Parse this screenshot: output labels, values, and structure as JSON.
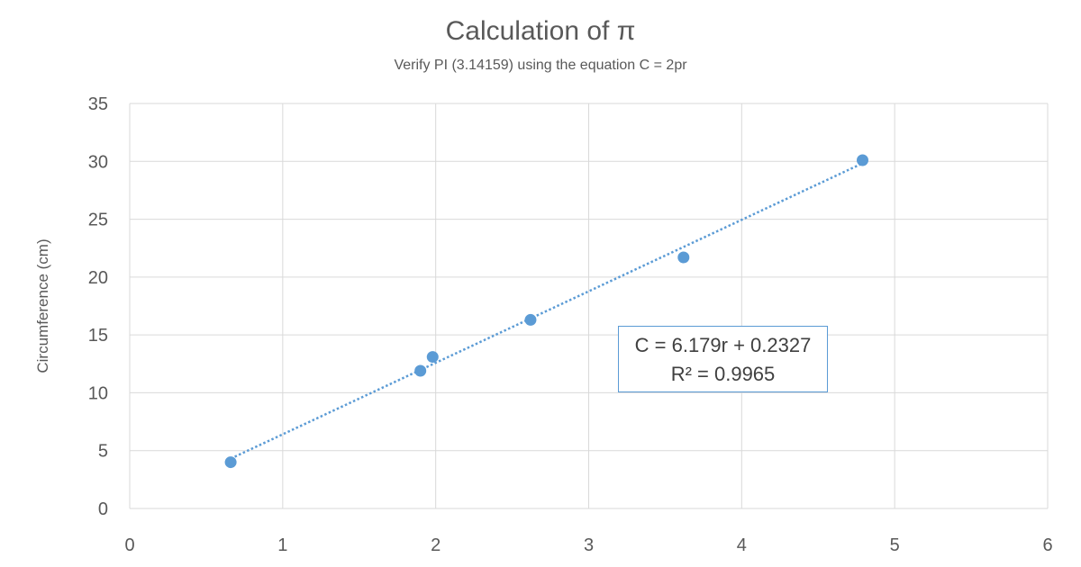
{
  "chart_data": {
    "type": "scatter",
    "title": "Calculation of π",
    "subtitle": "Verify PI (3.14159) using the equation  C = 2pr",
    "xlabel": "",
    "ylabel": "Circumference (cm)",
    "xlim": [
      0,
      6
    ],
    "ylim": [
      0,
      35
    ],
    "xticks": [
      0,
      1,
      2,
      3,
      4,
      5,
      6
    ],
    "yticks": [
      0,
      5,
      10,
      15,
      20,
      25,
      30,
      35
    ],
    "grid": true,
    "points": [
      {
        "x": 0.66,
        "y": 4.0
      },
      {
        "x": 1.9,
        "y": 11.9
      },
      {
        "x": 1.98,
        "y": 13.1
      },
      {
        "x": 2.62,
        "y": 16.3
      },
      {
        "x": 3.62,
        "y": 21.7
      },
      {
        "x": 4.79,
        "y": 30.1
      }
    ],
    "trendline": {
      "type": "linear",
      "slope": 6.179,
      "intercept": 0.2327,
      "style": "dotted"
    },
    "annotation": {
      "equation": "C = 6.179r + 0.2327",
      "r_squared": "R² = 0.9965"
    },
    "colors": {
      "marker": "#5b9bd5",
      "grid": "#d9d9d9",
      "text": "#595959"
    }
  }
}
